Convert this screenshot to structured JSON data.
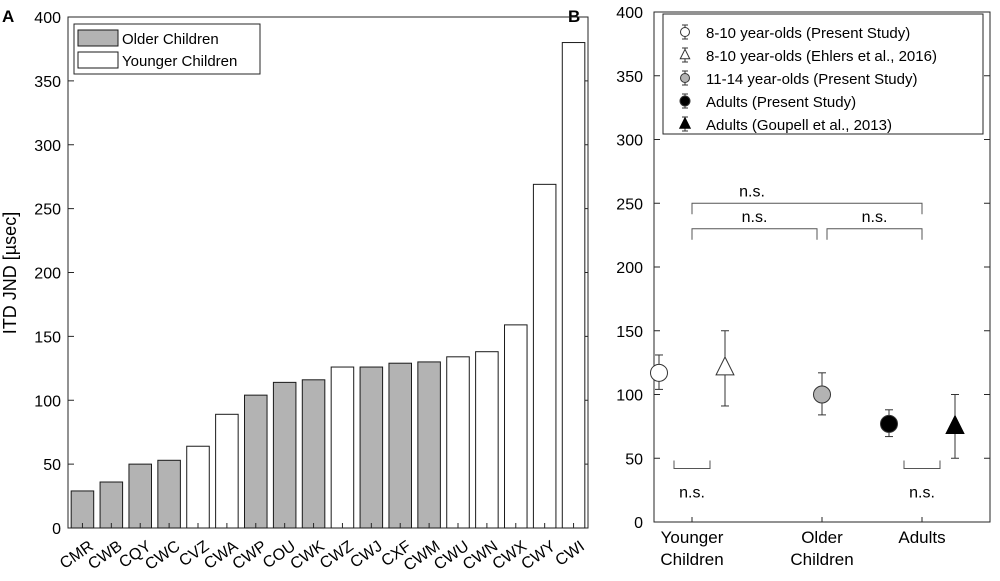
{
  "chart_data": [
    {
      "panel_label": "A",
      "type": "bar",
      "ylabel": "ITD JND [µsec]",
      "xlabel": "",
      "ylim": [
        0,
        400
      ],
      "yticks": [
        0,
        50,
        100,
        150,
        200,
        250,
        300,
        350,
        400
      ],
      "grid": false,
      "legend_position": "top-left",
      "legend": [
        {
          "name": "Older Children",
          "color": "#b3b3b3"
        },
        {
          "name": "Younger Children",
          "color": "#ffffff"
        }
      ],
      "categories": [
        "CMR",
        "CWB",
        "CQY",
        "CWC",
        "CVZ",
        "CWA",
        "CWP",
        "COU",
        "CWK",
        "CWZ",
        "CWJ",
        "CXF",
        "CWM",
        "CWU",
        "CWN",
        "CWX",
        "CWY",
        "CWI"
      ],
      "values": [
        29,
        36,
        50,
        53,
        64,
        89,
        104,
        114,
        116,
        126,
        126,
        129,
        130,
        134,
        138,
        159,
        269,
        380
      ],
      "groups": [
        "Older Children",
        "Older Children",
        "Older Children",
        "Older Children",
        "Younger Children",
        "Younger Children",
        "Older Children",
        "Older Children",
        "Older Children",
        "Younger Children",
        "Older Children",
        "Older Children",
        "Older Children",
        "Younger Children",
        "Younger Children",
        "Younger Children",
        "Younger Children",
        "Younger Children"
      ]
    },
    {
      "panel_label": "B",
      "type": "scatter",
      "ylabel": "",
      "xlabel": "",
      "ylim": [
        0,
        400
      ],
      "yticks": [
        0,
        50,
        100,
        150,
        200,
        250,
        300,
        350,
        400
      ],
      "grid": false,
      "legend_position": "top",
      "categories": [
        {
          "line1": "Younger",
          "line2": "Children"
        },
        {
          "line1": "Older",
          "line2": "Children"
        },
        {
          "line1": "Adults",
          "line2": ""
        }
      ],
      "series": [
        {
          "name": "8-10 year-olds (Present Study)",
          "marker": "circle",
          "fill": "#ffffff",
          "category": 0,
          "offset": -0.3,
          "mean": 117,
          "lower": 104,
          "upper": 131
        },
        {
          "name": "8-10 year-olds  (Ehlers et al., 2016)",
          "marker": "triangle",
          "fill": "#ffffff",
          "category": 0,
          "offset": 0.3,
          "mean": 121,
          "lower": 91,
          "upper": 150
        },
        {
          "name": "11-14 year-olds (Present Study)",
          "marker": "circle",
          "fill": "#b3b3b3",
          "category": 1,
          "offset": 0,
          "mean": 100,
          "lower": 84,
          "upper": 117
        },
        {
          "name": "Adults (Present Study)",
          "marker": "circle",
          "fill": "#000000",
          "category": 2,
          "offset": -0.3,
          "mean": 77,
          "lower": 67,
          "upper": 88
        },
        {
          "name": "Adults (Goupell et al., 2013)",
          "marker": "triangle",
          "fill": "#000000",
          "category": 2,
          "offset": 0.3,
          "mean": 75,
          "lower": 50,
          "upper": 100
        }
      ],
      "annotations": [
        {
          "text": "n.s.",
          "kind": "top",
          "from": 0,
          "to": 2,
          "y": 250
        },
        {
          "text": "n.s.",
          "kind": "top",
          "from": 0,
          "to": 1,
          "y": 230
        },
        {
          "text": "n.s.",
          "kind": "top",
          "from": 1,
          "to": 2,
          "y": 230
        },
        {
          "text": "n.s.",
          "kind": "bottom",
          "from": 0,
          "to": 0,
          "y": 42
        },
        {
          "text": "n.s.",
          "kind": "bottom",
          "from": 2,
          "to": 2,
          "y": 42
        }
      ]
    }
  ]
}
